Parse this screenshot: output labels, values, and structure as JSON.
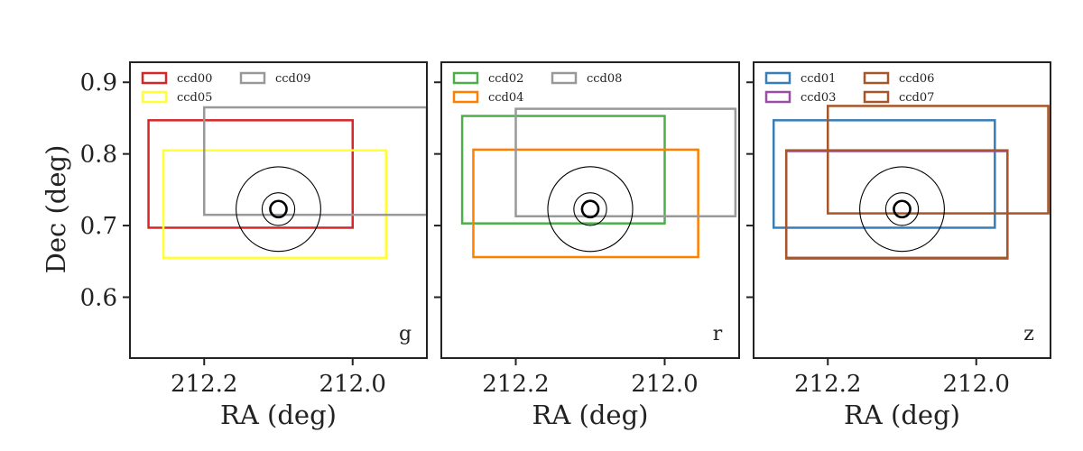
{
  "figure": {
    "ylabel": "Dec (deg)",
    "xlabel": "RA (deg)"
  },
  "chart_data": [
    {
      "type": "scatter",
      "band": "g",
      "xlim": [
        212.3,
        211.9
      ],
      "ylim": [
        0.515,
        0.928
      ],
      "xticks": [
        212.2,
        212.0
      ],
      "xtick_labels": [
        "212.2",
        "212.0"
      ],
      "yticks": [
        0.9,
        0.8,
        0.7,
        0.6
      ],
      "ytick_labels": [
        "0.9",
        "0.8",
        "0.7",
        "0.6"
      ],
      "xlabel": "RA (deg)",
      "ylabel": "Dec (deg)",
      "legend_position": "top-left",
      "target": {
        "ra": 212.1,
        "dec": 0.723,
        "circle_radii_deg": [
          0.011,
          0.022,
          0.057
        ]
      },
      "series": [
        {
          "name": "ccd00",
          "color": "#d62728",
          "ra_min": 212.0,
          "ra_max": 212.275,
          "dec_min": 0.697,
          "dec_max": 0.847
        },
        {
          "name": "ccd05",
          "color": "#ffff33",
          "ra_min": 211.955,
          "ra_max": 212.255,
          "dec_min": 0.655,
          "dec_max": 0.805
        },
        {
          "name": "ccd09",
          "color": "#999999",
          "ra_min": 211.9,
          "ra_max": 212.2,
          "dec_min": 0.715,
          "dec_max": 0.865
        }
      ]
    },
    {
      "type": "scatter",
      "band": "r",
      "xlim": [
        212.3,
        211.9
      ],
      "ylim": [
        0.515,
        0.928
      ],
      "xticks": [
        212.2,
        212.0
      ],
      "xtick_labels": [
        "212.2",
        "212.0"
      ],
      "yticks": [
        0.9,
        0.8,
        0.7,
        0.6
      ],
      "ytick_labels": [
        "",
        "",
        "",
        ""
      ],
      "xlabel": "RA (deg)",
      "ylabel": "",
      "legend_position": "top-left",
      "target": {
        "ra": 212.1,
        "dec": 0.723,
        "circle_radii_deg": [
          0.011,
          0.022,
          0.057
        ]
      },
      "series": [
        {
          "name": "ccd02",
          "color": "#4daf4a",
          "ra_min": 212.0,
          "ra_max": 212.272,
          "dec_min": 0.703,
          "dec_max": 0.853
        },
        {
          "name": "ccd04",
          "color": "#ff7f00",
          "ra_min": 211.955,
          "ra_max": 212.257,
          "dec_min": 0.656,
          "dec_max": 0.806
        },
        {
          "name": "ccd08",
          "color": "#999999",
          "ra_min": 211.905,
          "ra_max": 212.2,
          "dec_min": 0.713,
          "dec_max": 0.863
        }
      ]
    },
    {
      "type": "scatter",
      "band": "z",
      "xlim": [
        212.3,
        211.9
      ],
      "ylim": [
        0.515,
        0.928
      ],
      "xticks": [
        212.2,
        212.0
      ],
      "xtick_labels": [
        "212.2",
        "212.0"
      ],
      "yticks": [
        0.9,
        0.8,
        0.7,
        0.6
      ],
      "ytick_labels": [
        "",
        "",
        "",
        ""
      ],
      "xlabel": "RA (deg)",
      "ylabel": "",
      "legend_position": "top-left",
      "target": {
        "ra": 212.1,
        "dec": 0.723,
        "circle_radii_deg": [
          0.011,
          0.022,
          0.057
        ]
      },
      "series": [
        {
          "name": "ccd01",
          "color": "#377eb8",
          "ra_min": 211.975,
          "ra_max": 212.273,
          "dec_min": 0.697,
          "dec_max": 0.847
        },
        {
          "name": "ccd03",
          "color": "#984ea3",
          "ra_min": 211.958,
          "ra_max": 212.256,
          "dec_min": 0.654,
          "dec_max": 0.804
        },
        {
          "name": "ccd06",
          "color": "#a65628",
          "ra_min": 211.903,
          "ra_max": 212.2,
          "dec_min": 0.717,
          "dec_max": 0.867
        },
        {
          "name": "ccd07",
          "color": "#a65628",
          "ra_min": 211.958,
          "ra_max": 212.256,
          "dec_min": 0.655,
          "dec_max": 0.805
        }
      ]
    }
  ]
}
